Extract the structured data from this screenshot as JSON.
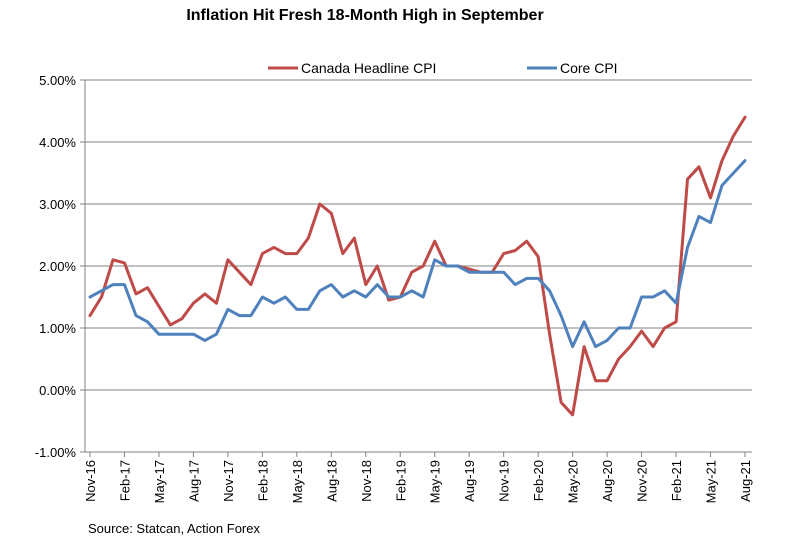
{
  "chart_data": {
    "type": "line",
    "title": "Inflation Hit Fresh 18-Month High in September",
    "source": "Source: Statcan, Action Forex",
    "xlabel": "",
    "ylabel": "",
    "ylim": [
      -1.0,
      5.0
    ],
    "y_ticks": [
      "-1.00%",
      "0.00%",
      "1.00%",
      "2.00%",
      "3.00%",
      "4.00%",
      "5.00%"
    ],
    "y_tick_values": [
      -1,
      0,
      1,
      2,
      3,
      4,
      5
    ],
    "grid": "horizontal",
    "legend_position": "top",
    "x": [
      "Nov-16",
      "Dec-16",
      "Jan-17",
      "Feb-17",
      "Mar-17",
      "Apr-17",
      "May-17",
      "Jun-17",
      "Jul-17",
      "Aug-17",
      "Sep-17",
      "Oct-17",
      "Nov-17",
      "Dec-17",
      "Jan-18",
      "Feb-18",
      "Mar-18",
      "Apr-18",
      "May-18",
      "Jun-18",
      "Jul-18",
      "Aug-18",
      "Sep-18",
      "Oct-18",
      "Nov-18",
      "Dec-18",
      "Jan-19",
      "Feb-19",
      "Mar-19",
      "Apr-19",
      "May-19",
      "Jun-19",
      "Jul-19",
      "Aug-19",
      "Sep-19",
      "Oct-19",
      "Nov-19",
      "Dec-19",
      "Jan-20",
      "Feb-20",
      "Mar-20",
      "Apr-20",
      "May-20",
      "Jun-20",
      "Jul-20",
      "Aug-20",
      "Sep-20",
      "Oct-20",
      "Nov-20",
      "Dec-20",
      "Jan-21",
      "Feb-21",
      "Mar-21",
      "Apr-21",
      "May-21",
      "Jun-21",
      "Jul-21",
      "Aug-21"
    ],
    "x_tick_labels": [
      "Nov-16",
      "Feb-17",
      "May-17",
      "Aug-17",
      "Nov-17",
      "Feb-18",
      "May-18",
      "Aug-18",
      "Nov-18",
      "Feb-19",
      "May-19",
      "Aug-19",
      "Nov-19",
      "Feb-20",
      "May-20",
      "Aug-20",
      "Nov-20",
      "Feb-21",
      "May-21",
      "Aug-21"
    ],
    "series": [
      {
        "name": "Canada Headline CPI",
        "color": "#BE4B48",
        "values": [
          1.2,
          1.5,
          2.1,
          2.05,
          1.55,
          1.65,
          1.35,
          1.05,
          1.15,
          1.4,
          1.55,
          1.4,
          2.1,
          1.9,
          1.7,
          2.2,
          2.3,
          2.2,
          2.2,
          2.45,
          3.0,
          2.85,
          2.2,
          2.45,
          1.7,
          2.0,
          1.45,
          1.5,
          1.9,
          2.0,
          2.4,
          2.0,
          2.0,
          1.95,
          1.9,
          1.9,
          2.2,
          2.25,
          2.4,
          2.15,
          0.9,
          -0.2,
          -0.4,
          0.7,
          0.15,
          0.15,
          0.5,
          0.7,
          0.95,
          0.7,
          1.0,
          1.1,
          3.4,
          3.6,
          3.1,
          3.7,
          4.1,
          4.4
        ]
      },
      {
        "name": "Core CPI",
        "color": "#4F81BD",
        "values": [
          1.5,
          1.6,
          1.7,
          1.7,
          1.2,
          1.1,
          0.9,
          0.9,
          0.9,
          0.9,
          0.8,
          0.9,
          1.3,
          1.2,
          1.2,
          1.5,
          1.4,
          1.5,
          1.3,
          1.3,
          1.6,
          1.7,
          1.5,
          1.6,
          1.5,
          1.7,
          1.5,
          1.5,
          1.6,
          1.5,
          2.1,
          2.0,
          2.0,
          1.9,
          1.9,
          1.9,
          1.9,
          1.7,
          1.8,
          1.8,
          1.6,
          1.2,
          0.7,
          1.1,
          0.7,
          0.8,
          1.0,
          1.0,
          1.5,
          1.5,
          1.6,
          1.4,
          2.3,
          2.8,
          2.7,
          3.3,
          3.5,
          3.7
        ]
      }
    ]
  }
}
